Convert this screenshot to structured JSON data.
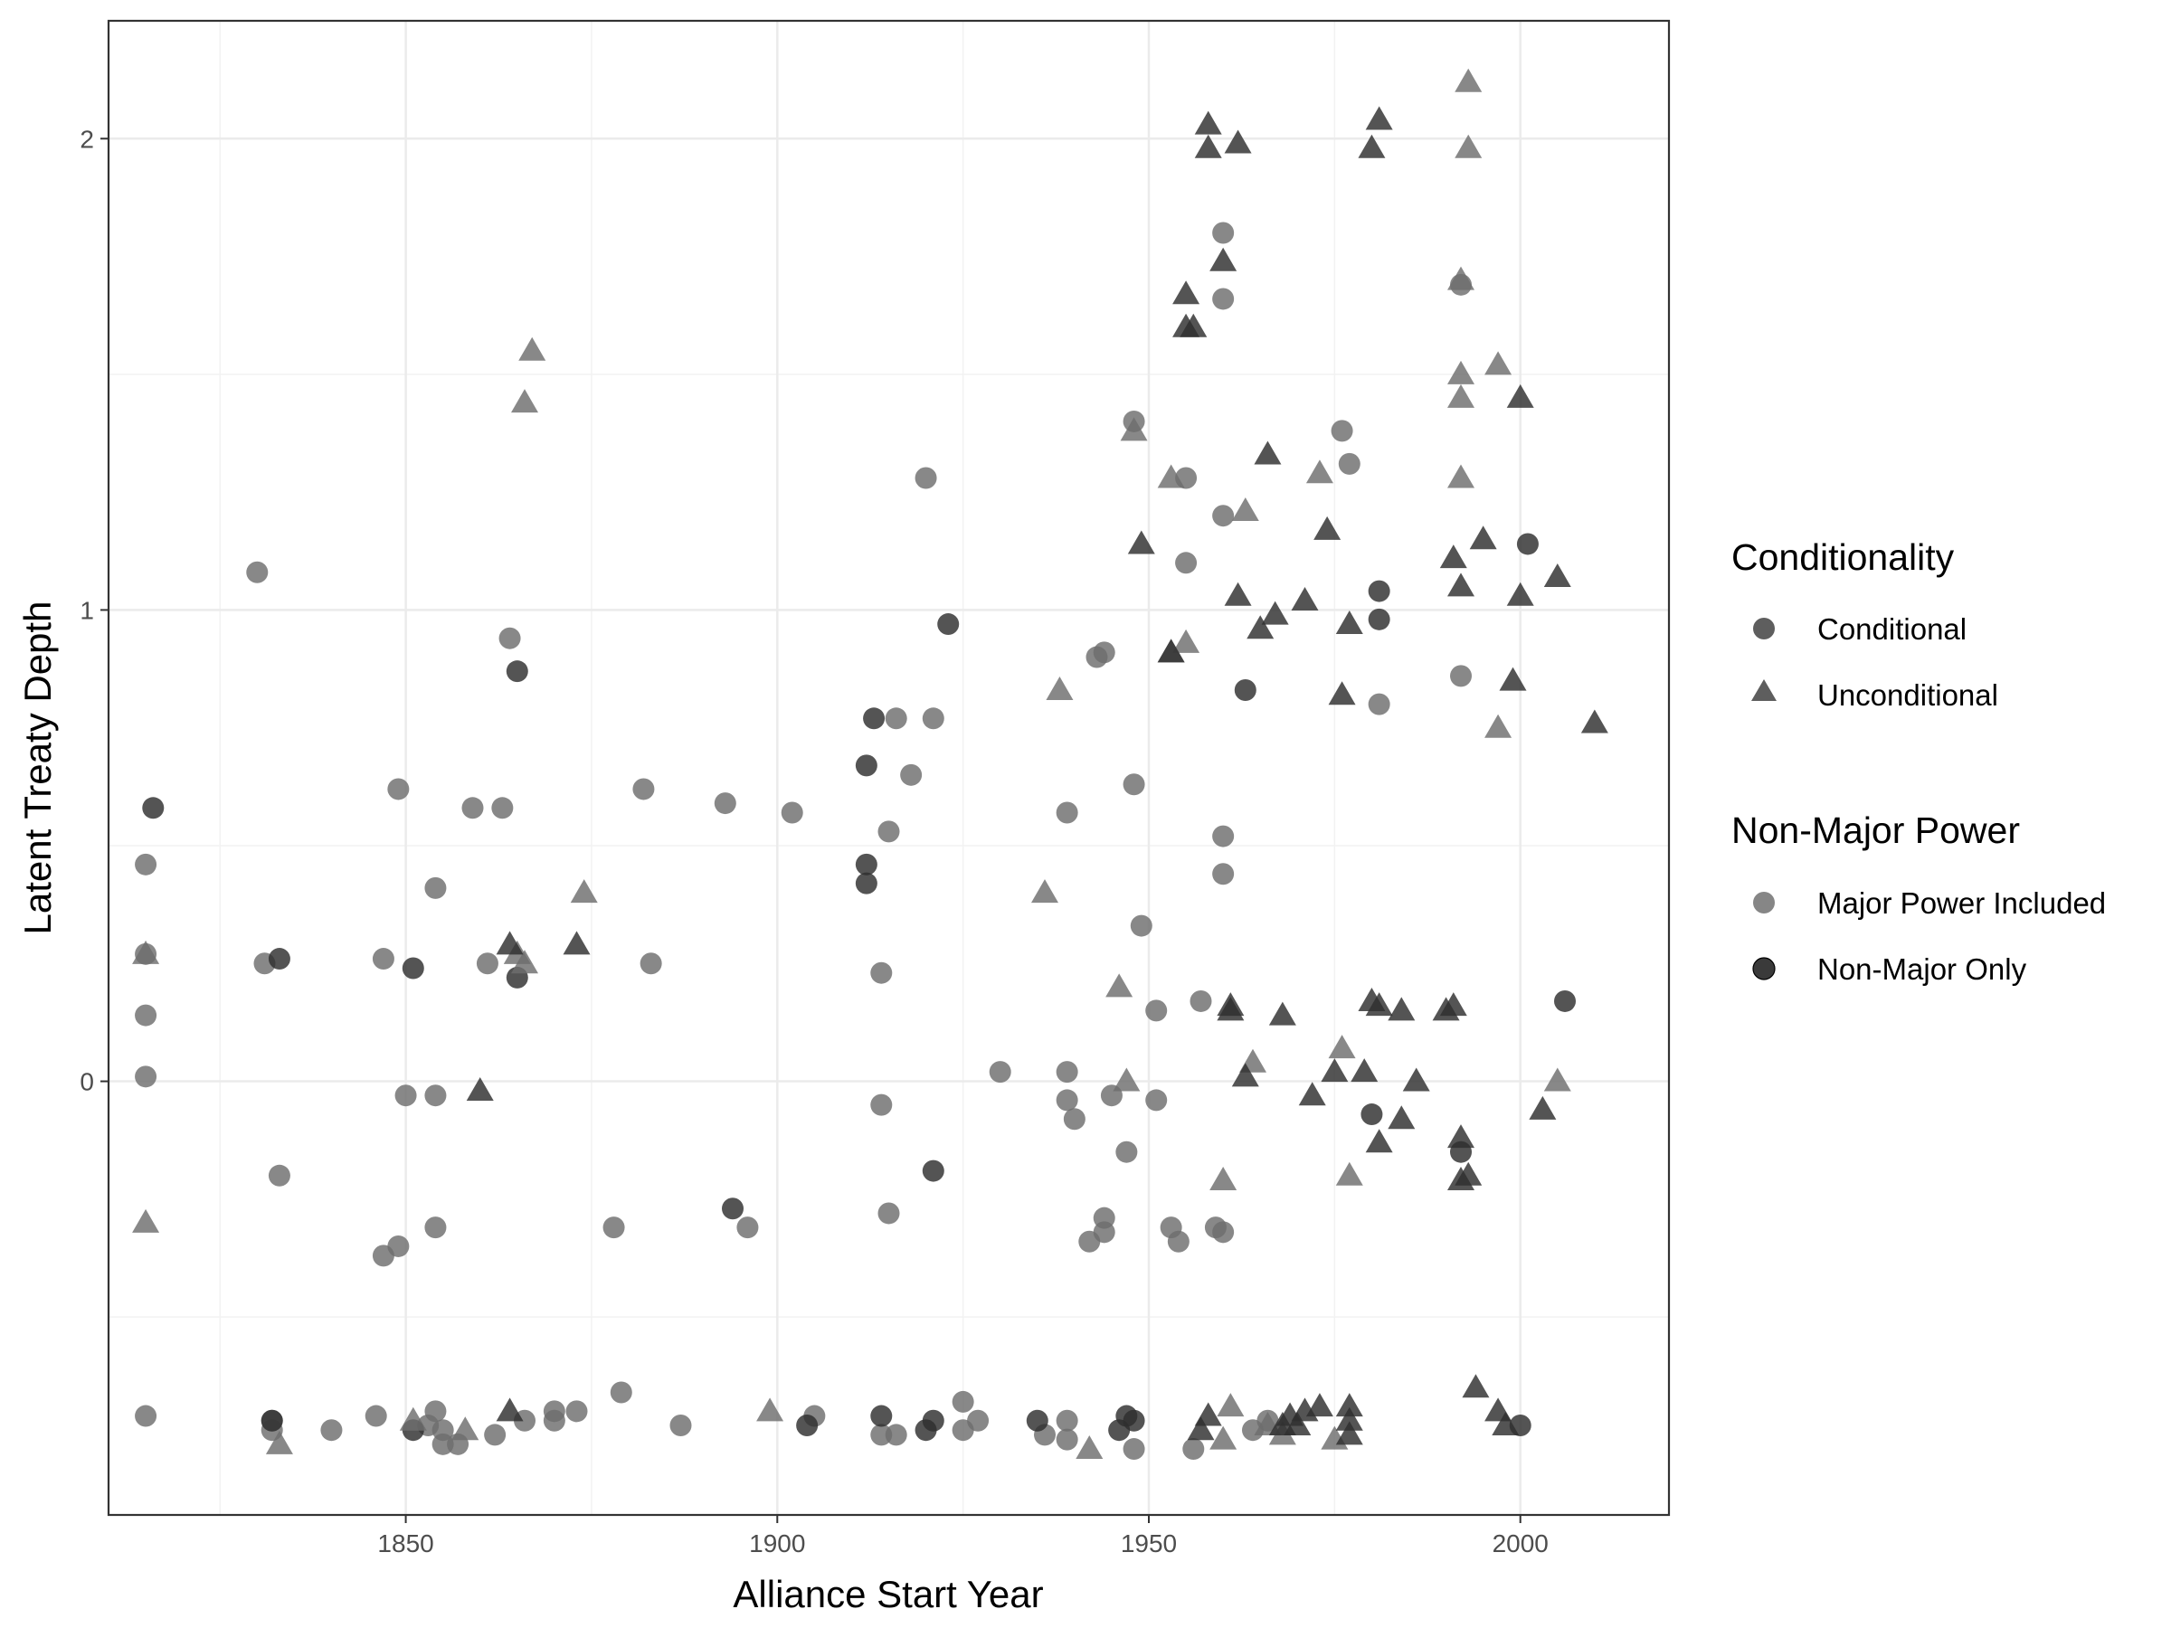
{
  "chart_data": {
    "type": "scatter",
    "title": "",
    "xlabel": "Alliance Start Year",
    "ylabel": "Latent Treaty Depth",
    "xlim": [
      1810,
      2020
    ],
    "ylim": [
      -0.92,
      2.25
    ],
    "x_ticks": [
      1850,
      1900,
      1950,
      2000
    ],
    "x_tick_labels": [
      "1850",
      "1900",
      "1950",
      "2000"
    ],
    "y_ticks": [
      0,
      1,
      2
    ],
    "y_tick_labels": [
      "0",
      "1",
      "2"
    ],
    "grid": true,
    "legend_position": "right",
    "legends": [
      {
        "title": "Conditionality",
        "entries": [
          {
            "label": "Conditional",
            "shape": "circle"
          },
          {
            "label": "Unconditional",
            "shape": "triangle"
          }
        ]
      },
      {
        "title": "Non-Major Power",
        "entries": [
          {
            "label": "Major Power Included",
            "color": "#6e6e6e"
          },
          {
            "label": "Non-Major Only",
            "color": "#2e2e2e"
          }
        ]
      }
    ],
    "colors": {
      "Major Power Included": "#6e6e6e",
      "Non-Major Only": "#2e2e2e"
    },
    "series": [
      {
        "shape": "circle",
        "group": "Major Power Included",
        "points": [
          [
            1815,
            0.46
          ],
          [
            1815,
            0.27
          ],
          [
            1815,
            0.14
          ],
          [
            1815,
            0.01
          ],
          [
            1815,
            -0.71
          ],
          [
            1830,
            1.08
          ],
          [
            1831,
            0.25
          ],
          [
            1833,
            -0.2
          ],
          [
            1832,
            -0.72
          ],
          [
            1832,
            -0.74
          ],
          [
            1840,
            -0.74
          ],
          [
            1846,
            -0.71
          ],
          [
            1847,
            0.26
          ],
          [
            1847,
            -0.37
          ],
          [
            1849,
            0.62
          ],
          [
            1849,
            -0.35
          ],
          [
            1850,
            -0.03
          ],
          [
            1853,
            -0.73
          ],
          [
            1854,
            0.41
          ],
          [
            1854,
            -0.03
          ],
          [
            1854,
            -0.31
          ],
          [
            1854,
            -0.7
          ],
          [
            1855,
            -0.74
          ],
          [
            1855,
            -0.77
          ],
          [
            1857,
            -0.77
          ],
          [
            1859,
            0.58
          ],
          [
            1861,
            0.25
          ],
          [
            1862,
            -0.75
          ],
          [
            1863,
            0.58
          ],
          [
            1864,
            0.94
          ],
          [
            1866,
            -0.72
          ],
          [
            1870,
            -0.7
          ],
          [
            1870,
            -0.72
          ],
          [
            1873,
            -0.7
          ],
          [
            1878,
            -0.31
          ],
          [
            1879,
            -0.66
          ],
          [
            1882,
            0.62
          ],
          [
            1883,
            0.25
          ],
          [
            1887,
            -0.73
          ],
          [
            1893,
            0.59
          ],
          [
            1896,
            -0.31
          ],
          [
            1902,
            0.57
          ],
          [
            1905,
            -0.71
          ],
          [
            1914,
            0.23
          ],
          [
            1914,
            -0.05
          ],
          [
            1914,
            -0.75
          ],
          [
            1915,
            0.53
          ],
          [
            1915,
            -0.28
          ],
          [
            1916,
            0.77
          ],
          [
            1916,
            -0.75
          ],
          [
            1918,
            0.65
          ],
          [
            1920,
            1.28
          ],
          [
            1921,
            0.77
          ],
          [
            1925,
            -0.68
          ],
          [
            1925,
            -0.74
          ],
          [
            1927,
            -0.72
          ],
          [
            1930,
            0.02
          ],
          [
            1936,
            -0.75
          ],
          [
            1939,
            0.57
          ],
          [
            1939,
            0.02
          ],
          [
            1939,
            -0.04
          ],
          [
            1939,
            -0.72
          ],
          [
            1939,
            -0.76
          ],
          [
            1940,
            -0.08
          ],
          [
            1942,
            -0.34
          ],
          [
            1943,
            0.9
          ],
          [
            1944,
            0.91
          ],
          [
            1944,
            -0.29
          ],
          [
            1944,
            -0.32
          ],
          [
            1945,
            -0.03
          ],
          [
            1947,
            -0.15
          ],
          [
            1948,
            1.4
          ],
          [
            1948,
            0.63
          ],
          [
            1948,
            -0.78
          ],
          [
            1949,
            0.33
          ],
          [
            1951,
            0.15
          ],
          [
            1951,
            -0.04
          ],
          [
            1953,
            -0.31
          ],
          [
            1954,
            -0.34
          ],
          [
            1955,
            1.28
          ],
          [
            1955,
            1.1
          ],
          [
            1956,
            -0.78
          ],
          [
            1957,
            0.17
          ],
          [
            1959,
            -0.31
          ],
          [
            1960,
            -0.32
          ],
          [
            1960,
            1.8
          ],
          [
            1960,
            1.66
          ],
          [
            1960,
            1.2
          ],
          [
            1960,
            0.52
          ],
          [
            1960,
            0.44
          ],
          [
            1964,
            -0.74
          ],
          [
            1966,
            -0.72
          ],
          [
            1976,
            1.38
          ],
          [
            1977,
            1.31
          ],
          [
            1981,
            0.8
          ],
          [
            1992,
            0.86
          ],
          [
            1992,
            1.69
          ]
        ]
      },
      {
        "shape": "circle",
        "group": "Non-Major Only",
        "points": [
          [
            1816,
            0.58
          ],
          [
            1832,
            -0.72
          ],
          [
            1833,
            0.26
          ],
          [
            1851,
            0.24
          ],
          [
            1851,
            -0.74
          ],
          [
            1865,
            0.87
          ],
          [
            1865,
            0.22
          ],
          [
            1894,
            -0.27
          ],
          [
            1904,
            -0.73
          ],
          [
            1912,
            0.67
          ],
          [
            1912,
            0.46
          ],
          [
            1912,
            0.42
          ],
          [
            1913,
            0.77
          ],
          [
            1914,
            -0.71
          ],
          [
            1920,
            -0.74
          ],
          [
            1921,
            -0.72
          ],
          [
            1921,
            -0.19
          ],
          [
            1923,
            0.97
          ],
          [
            1935,
            -0.72
          ],
          [
            1946,
            -0.74
          ],
          [
            1947,
            -0.71
          ],
          [
            1948,
            -0.72
          ],
          [
            1963,
            0.83
          ],
          [
            1980,
            -0.07
          ],
          [
            1981,
            1.04
          ],
          [
            1981,
            0.98
          ],
          [
            1992,
            -0.15
          ],
          [
            2000,
            -0.73
          ],
          [
            2001,
            1.14
          ],
          [
            2006,
            0.17
          ]
        ]
      },
      {
        "shape": "triangle",
        "group": "Major Power Included",
        "points": [
          [
            1815,
            0.27
          ],
          [
            1815,
            -0.3
          ],
          [
            1833,
            -0.77
          ],
          [
            1851,
            -0.72
          ],
          [
            1858,
            -0.74
          ],
          [
            1865,
            0.27
          ],
          [
            1866,
            0.25
          ],
          [
            1867,
            1.55
          ],
          [
            1866,
            1.44
          ],
          [
            1874,
            0.4
          ],
          [
            1899,
            -0.7
          ],
          [
            1936,
            0.4
          ],
          [
            1938,
            0.83
          ],
          [
            1942,
            -0.78
          ],
          [
            1946,
            0.2
          ],
          [
            1947,
            0.0
          ],
          [
            1948,
            1.38
          ],
          [
            1953,
            1.28
          ],
          [
            1953,
            0.91
          ],
          [
            1955,
            0.93
          ],
          [
            1960,
            -0.21
          ],
          [
            1960,
            -0.76
          ],
          [
            1961,
            -0.69
          ],
          [
            1963,
            1.21
          ],
          [
            1964,
            0.04
          ],
          [
            1966,
            -0.73
          ],
          [
            1968,
            -0.75
          ],
          [
            1973,
            1.29
          ],
          [
            1975,
            -0.76
          ],
          [
            1976,
            0.07
          ],
          [
            1977,
            -0.2
          ],
          [
            1992,
            1.7
          ],
          [
            1992,
            1.28
          ],
          [
            1992,
            1.5
          ],
          [
            1992,
            1.45
          ],
          [
            1993,
            2.12
          ],
          [
            1993,
            1.98
          ],
          [
            1997,
            1.52
          ],
          [
            1997,
            0.75
          ],
          [
            2005,
            0.0
          ]
        ]
      },
      {
        "shape": "triangle",
        "group": "Non-Major Only",
        "points": [
          [
            1860,
            -0.02
          ],
          [
            1864,
            0.29
          ],
          [
            1864,
            -0.7
          ],
          [
            1873,
            0.29
          ],
          [
            1949,
            1.14
          ],
          [
            1953,
            0.91
          ],
          [
            1955,
            1.67
          ],
          [
            1955,
            1.6
          ],
          [
            1956,
            1.6
          ],
          [
            1957,
            -0.74
          ],
          [
            1958,
            2.03
          ],
          [
            1958,
            1.98
          ],
          [
            1958,
            -0.71
          ],
          [
            1960,
            1.74
          ],
          [
            1961,
            0.15
          ],
          [
            1961,
            0.16
          ],
          [
            1962,
            1.99
          ],
          [
            1962,
            1.03
          ],
          [
            1963,
            0.01
          ],
          [
            1965,
            0.96
          ],
          [
            1966,
            1.33
          ],
          [
            1967,
            0.99
          ],
          [
            1968,
            -0.73
          ],
          [
            1968,
            0.14
          ],
          [
            1969,
            -0.71
          ],
          [
            1970,
            -0.73
          ],
          [
            1971,
            1.02
          ],
          [
            1971,
            -0.7
          ],
          [
            1972,
            -0.03
          ],
          [
            1973,
            -0.69
          ],
          [
            1974,
            1.17
          ],
          [
            1975,
            0.02
          ],
          [
            1976,
            0.82
          ],
          [
            1977,
            0.97
          ],
          [
            1977,
            -0.69
          ],
          [
            1977,
            -0.72
          ],
          [
            1977,
            -0.75
          ],
          [
            1979,
            0.02
          ],
          [
            1980,
            1.98
          ],
          [
            1980,
            0.17
          ],
          [
            1981,
            2.04
          ],
          [
            1981,
            0.16
          ],
          [
            1981,
            -0.13
          ],
          [
            1984,
            0.15
          ],
          [
            1984,
            -0.08
          ],
          [
            1986,
            0.0
          ],
          [
            1990,
            0.15
          ],
          [
            1991,
            1.11
          ],
          [
            1991,
            0.16
          ],
          [
            1992,
            1.05
          ],
          [
            1992,
            -0.21
          ],
          [
            1992,
            -0.12
          ],
          [
            1993,
            -0.2
          ],
          [
            1994,
            -0.65
          ],
          [
            1995,
            1.15
          ],
          [
            1997,
            -0.7
          ],
          [
            1998,
            -0.73
          ],
          [
            1999,
            0.85
          ],
          [
            2000,
            1.45
          ],
          [
            2000,
            1.03
          ],
          [
            2003,
            -0.06
          ],
          [
            2005,
            1.07
          ],
          [
            2010,
            0.76
          ]
        ]
      }
    ]
  }
}
